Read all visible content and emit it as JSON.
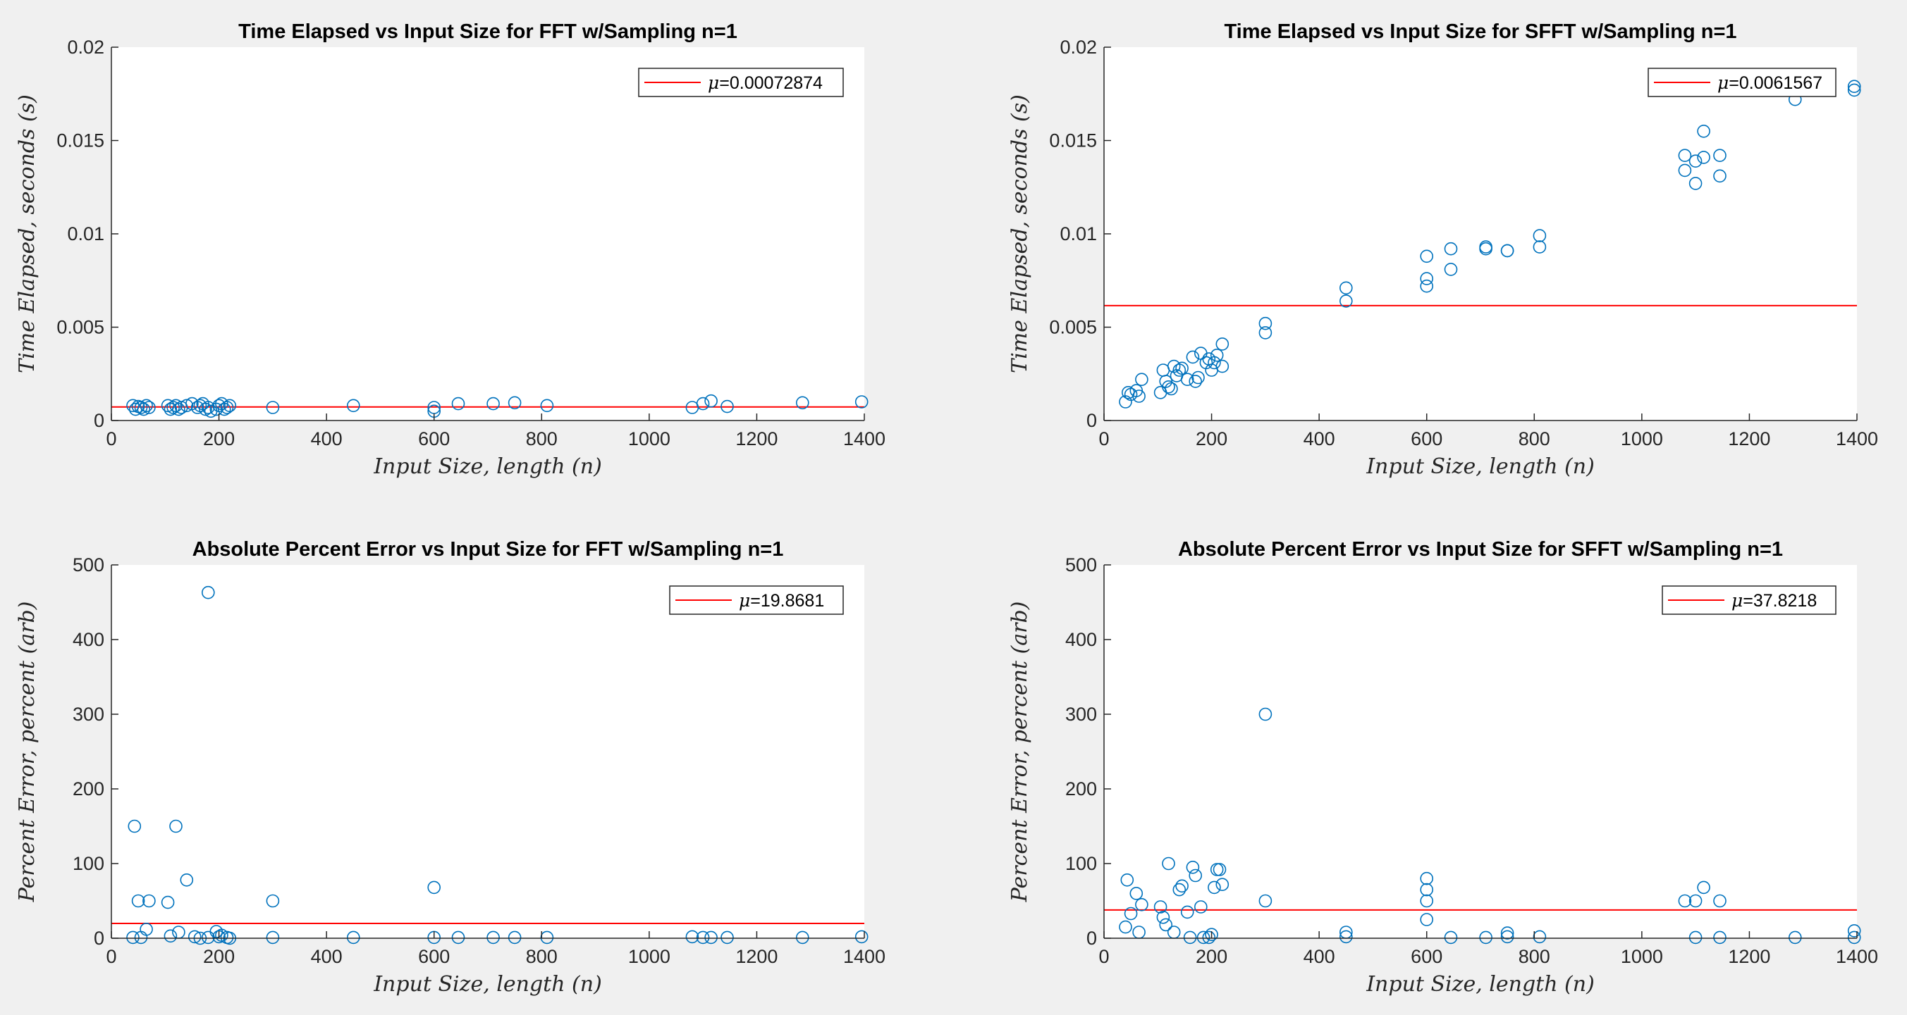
{
  "chart_data": [
    {
      "type": "scatter",
      "title": "Time Elapsed vs Input Size for FFT w/Sampling n=1",
      "xlabel": "Input Size, length (n)",
      "ylabel": "Time Elapsed, seconds (s)",
      "xlim": [
        0,
        1400
      ],
      "ylim": [
        0,
        0.02
      ],
      "xticks": [
        0,
        200,
        400,
        600,
        800,
        1000,
        1200,
        1400
      ],
      "xtick_labels": [
        "0",
        "200",
        "400",
        "600",
        "800",
        "1000",
        "1200",
        "1400"
      ],
      "yticks": [
        0,
        0.005,
        0.01,
        0.015,
        0.02
      ],
      "ytick_labels": [
        "0",
        "0.005",
        "0.01",
        "0.015",
        "0.02"
      ],
      "grid": false,
      "legend_position": "top-right",
      "mean_line": {
        "value": 0.00072874,
        "label": "=0.00072874",
        "color": "#ff0000"
      },
      "marker_color": "#0072bd",
      "x": [
        40,
        45,
        50,
        55,
        60,
        65,
        70,
        105,
        110,
        115,
        120,
        125,
        130,
        140,
        150,
        160,
        165,
        170,
        175,
        180,
        185,
        195,
        200,
        205,
        210,
        215,
        220,
        300,
        450,
        600,
        600,
        645,
        710,
        750,
        810,
        1080,
        1100,
        1115,
        1145,
        1285,
        1395
      ],
      "y": [
        0.0008,
        0.0006,
        0.00075,
        0.0007,
        0.0006,
        0.0008,
        0.0007,
        0.0008,
        0.0006,
        0.0007,
        0.0008,
        0.0006,
        0.0007,
        0.0008,
        0.0009,
        0.0007,
        0.0008,
        0.0009,
        0.0006,
        0.0007,
        0.0005,
        0.0006,
        0.0008,
        0.0009,
        0.0006,
        0.0007,
        0.0008,
        0.0007,
        0.0008,
        0.0005,
        0.0007,
        0.0009,
        0.0009,
        0.00095,
        0.0008,
        0.0007,
        0.0009,
        0.00105,
        0.00075,
        0.00095,
        0.001
      ]
    },
    {
      "type": "scatter",
      "title": "Time Elapsed vs Input Size for SFFT w/Sampling n=1",
      "xlabel": "Input Size, length (n)",
      "ylabel": "Time Elapsed, seconds (s)",
      "xlim": [
        0,
        1400
      ],
      "ylim": [
        0,
        0.02
      ],
      "xticks": [
        0,
        200,
        400,
        600,
        800,
        1000,
        1200,
        1400
      ],
      "xtick_labels": [
        "0",
        "200",
        "400",
        "600",
        "800",
        "1000",
        "1200",
        "1400"
      ],
      "yticks": [
        0,
        0.005,
        0.01,
        0.015,
        0.02
      ],
      "ytick_labels": [
        "0",
        "0.005",
        "0.01",
        "0.015",
        "0.02"
      ],
      "grid": false,
      "legend_position": "top-right",
      "mean_line": {
        "value": 0.0061567,
        "label": "=0.0061567",
        "color": "#ff0000"
      },
      "marker_color": "#0072bd",
      "x": [
        40,
        45,
        50,
        60,
        65,
        70,
        105,
        110,
        115,
        120,
        125,
        130,
        135,
        140,
        145,
        155,
        165,
        170,
        175,
        180,
        190,
        195,
        200,
        205,
        210,
        220,
        220,
        300,
        300,
        450,
        450,
        600,
        600,
        600,
        645,
        645,
        710,
        710,
        750,
        750,
        810,
        810,
        1080,
        1080,
        1100,
        1100,
        1115,
        1115,
        1145,
        1145,
        1285,
        1395,
        1395
      ],
      "y": [
        0.001,
        0.0015,
        0.0014,
        0.0016,
        0.0013,
        0.0022,
        0.0015,
        0.0027,
        0.0021,
        0.0018,
        0.0017,
        0.0029,
        0.0024,
        0.0027,
        0.0028,
        0.0022,
        0.0034,
        0.0021,
        0.0023,
        0.0036,
        0.0031,
        0.0033,
        0.0027,
        0.0031,
        0.0035,
        0.0029,
        0.0041,
        0.0047,
        0.0052,
        0.0064,
        0.0071,
        0.0072,
        0.0076,
        0.0088,
        0.0081,
        0.0092,
        0.0093,
        0.0092,
        0.0091,
        0.0091,
        0.0093,
        0.0099,
        0.0134,
        0.0142,
        0.0127,
        0.0139,
        0.0141,
        0.0155,
        0.0131,
        0.0142,
        0.0172,
        0.0177,
        0.0179
      ]
    },
    {
      "type": "scatter",
      "title": "Absolute Percent Error vs Input Size for FFT w/Sampling n=1",
      "xlabel": "Input Size, length (n)",
      "ylabel": "Percent Error, percent (arb)",
      "xlim": [
        0,
        1400
      ],
      "ylim": [
        0,
        500
      ],
      "xticks": [
        0,
        200,
        400,
        600,
        800,
        1000,
        1200,
        1400
      ],
      "xtick_labels": [
        "0",
        "200",
        "400",
        "600",
        "800",
        "1000",
        "1200",
        "1400"
      ],
      "yticks": [
        0,
        100,
        200,
        300,
        400,
        500
      ],
      "ytick_labels": [
        "0",
        "100",
        "200",
        "300",
        "400",
        "500"
      ],
      "grid": false,
      "legend_position": "top-right",
      "mean_line": {
        "value": 19.8681,
        "label": "=19.8681",
        "color": "#ff0000"
      },
      "marker_color": "#0072bd",
      "x": [
        40,
        43,
        50,
        55,
        65,
        70,
        105,
        110,
        120,
        125,
        140,
        155,
        165,
        180,
        180,
        195,
        200,
        205,
        215,
        220,
        300,
        300,
        450,
        600,
        600,
        645,
        710,
        750,
        810,
        1080,
        1100,
        1115,
        1145,
        1285,
        1395
      ],
      "y": [
        1,
        150,
        50,
        1,
        12,
        50,
        48,
        3,
        150,
        8,
        78,
        2,
        0,
        463,
        1,
        9,
        2,
        4,
        1,
        0,
        1,
        50,
        1,
        1,
        68,
        1,
        1,
        1,
        1,
        2,
        1,
        1,
        1,
        1,
        2
      ]
    },
    {
      "type": "scatter",
      "title": "Absolute Percent Error vs Input Size for SFFT w/Sampling n=1",
      "xlabel": "Input Size, length (n)",
      "ylabel": "Percent Error, percent (arb)",
      "xlim": [
        0,
        1400
      ],
      "ylim": [
        0,
        500
      ],
      "xticks": [
        0,
        200,
        400,
        600,
        800,
        1000,
        1200,
        1400
      ],
      "xtick_labels": [
        "0",
        "200",
        "400",
        "600",
        "800",
        "1000",
        "1200",
        "1400"
      ],
      "yticks": [
        0,
        100,
        200,
        300,
        400,
        500
      ],
      "ytick_labels": [
        "0",
        "100",
        "200",
        "300",
        "400",
        "500"
      ],
      "grid": false,
      "legend_position": "top-right",
      "mean_line": {
        "value": 37.8218,
        "label": "=37.8218",
        "color": "#ff0000"
      },
      "marker_color": "#0072bd",
      "x": [
        40,
        43,
        50,
        60,
        65,
        70,
        105,
        110,
        115,
        120,
        130,
        140,
        145,
        155,
        160,
        165,
        170,
        180,
        185,
        195,
        200,
        205,
        210,
        215,
        220,
        300,
        300,
        450,
        450,
        600,
        600,
        600,
        600,
        645,
        710,
        750,
        750,
        810,
        1080,
        1100,
        1100,
        1115,
        1145,
        1145,
        1285,
        1395,
        1395
      ],
      "y": [
        15,
        78,
        33,
        60,
        8,
        45,
        42,
        28,
        18,
        100,
        8,
        65,
        70,
        35,
        1,
        95,
        84,
        42,
        1,
        1,
        5,
        68,
        92,
        92,
        72,
        300,
        50,
        8,
        2,
        80,
        65,
        50,
        25,
        1,
        1,
        7,
        2,
        2,
        50,
        50,
        1,
        68,
        50,
        1,
        1,
        1,
        10
      ]
    }
  ]
}
